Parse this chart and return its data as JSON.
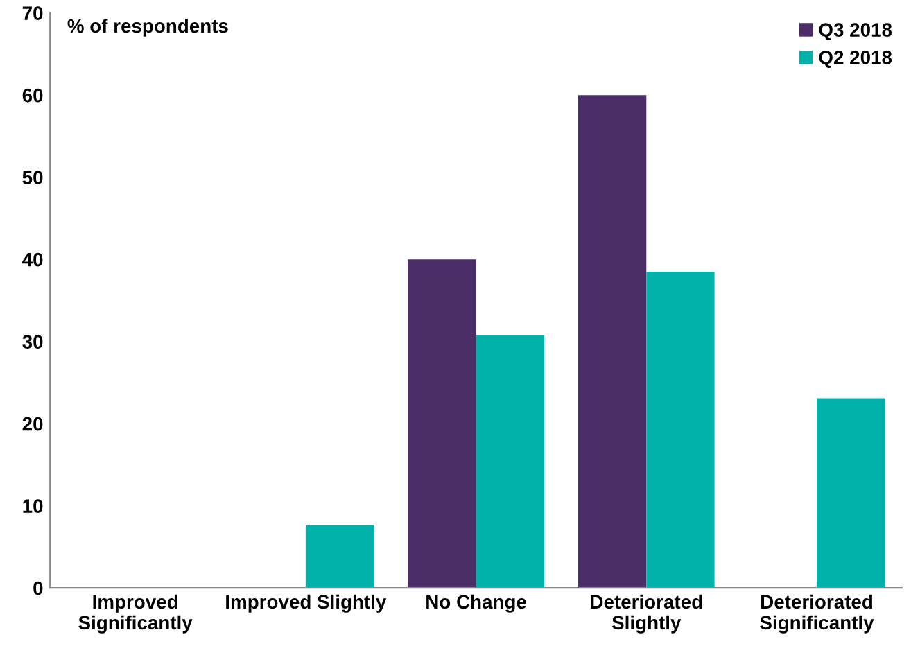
{
  "chart_data": {
    "type": "bar",
    "ylabel": "% of respondents",
    "categories": [
      "Improved\nSignificantly",
      "Improved Slightly",
      "No Change",
      "Deteriorated\nSlightly",
      "Deteriorated\nSignificantly"
    ],
    "series": [
      {
        "name": "Q3 2018",
        "color": "#4b2d67",
        "values": [
          0,
          0,
          40,
          60,
          0
        ]
      },
      {
        "name": "Q2 2018",
        "color": "#00b2a9",
        "values": [
          0,
          7.7,
          30.8,
          38.5,
          23.1
        ]
      }
    ],
    "ylim": [
      0,
      70
    ],
    "yticks": [
      0,
      10,
      20,
      30,
      40,
      50,
      60,
      70
    ],
    "grid": false,
    "legend": "top right"
  }
}
